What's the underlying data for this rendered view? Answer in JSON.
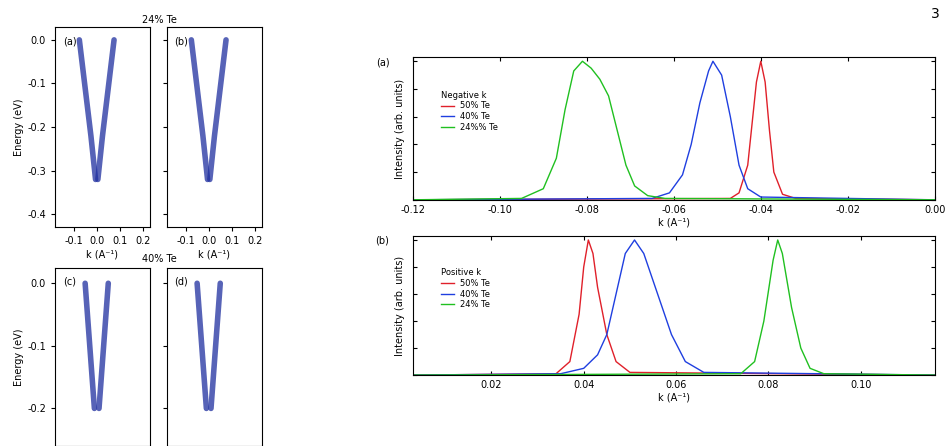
{
  "page": "3",
  "group_titles": [
    "24% Te",
    "40% Te"
  ],
  "chart_data": [
    {
      "type": "line",
      "panel": "(a)",
      "xlabel": "k (A⁻¹)",
      "ylabel": "Energy (eV)",
      "xlim": [
        -0.18,
        0.23
      ],
      "ylim": [
        -0.43,
        0.03
      ],
      "xticks": [
        -0.1,
        0.0,
        0.1,
        0.2
      ],
      "yticks": [
        -0.4,
        -0.3,
        -0.2,
        -0.1,
        0.0
      ],
      "tick_labels": true,
      "series": [
        {
          "color": "#1f2f9f",
          "x": [
            -0.075,
            -0.05,
            -0.025,
            -0.005
          ],
          "values": [
            0.0,
            -0.11,
            -0.22,
            -0.32
          ]
        },
        {
          "color": "#1f2f9f",
          "x": [
            0.075,
            0.05,
            0.025,
            0.005
          ],
          "values": [
            0.0,
            -0.11,
            -0.22,
            -0.32
          ]
        }
      ]
    },
    {
      "type": "line",
      "panel": "(b)",
      "xlabel": "k (A⁻¹)",
      "xlim": [
        -0.18,
        0.23
      ],
      "ylim": [
        -0.43,
        0.03
      ],
      "xticks": [
        -0.1,
        0.0,
        0.1,
        0.2
      ],
      "yticks": [
        -0.4,
        -0.3,
        -0.2,
        -0.1,
        0.0
      ],
      "tick_labels": "x",
      "series": [
        {
          "color": "#1f2f9f",
          "x": [
            -0.075,
            -0.05,
            -0.025,
            -0.005
          ],
          "values": [
            0.0,
            -0.11,
            -0.22,
            -0.32
          ]
        },
        {
          "color": "#1f2f9f",
          "x": [
            0.075,
            0.05,
            0.025,
            0.005
          ],
          "values": [
            0.0,
            -0.11,
            -0.22,
            -0.32
          ]
        }
      ]
    },
    {
      "type": "line",
      "panel": "(c)",
      "ylabel": "Energy (eV)",
      "xlim": [
        -0.18,
        0.23
      ],
      "ylim": [
        -0.26,
        0.025
      ],
      "xticks": [
        -0.1,
        0.0,
        0.1,
        0.2
      ],
      "yticks": [
        -0.2,
        -0.1,
        0.0
      ],
      "tick_labels": "y",
      "series": [
        {
          "color": "#1f2f9f",
          "x": [
            -0.05,
            -0.03,
            -0.01
          ],
          "values": [
            0.0,
            -0.1,
            -0.2
          ]
        },
        {
          "color": "#1f2f9f",
          "x": [
            0.05,
            0.03,
            0.01
          ],
          "values": [
            0.0,
            -0.1,
            -0.2
          ]
        }
      ]
    },
    {
      "type": "line",
      "panel": "(d)",
      "xlim": [
        -0.18,
        0.23
      ],
      "ylim": [
        -0.26,
        0.025
      ],
      "xticks": [
        -0.1,
        0.0,
        0.1,
        0.2
      ],
      "yticks": [
        -0.2,
        -0.1,
        0.0
      ],
      "tick_labels": false,
      "series": [
        {
          "color": "#1f2f9f",
          "x": [
            -0.05,
            -0.03,
            -0.01
          ],
          "values": [
            0.0,
            -0.1,
            -0.2
          ]
        },
        {
          "color": "#1f2f9f",
          "x": [
            0.05,
            0.03,
            0.01
          ],
          "values": [
            0.0,
            -0.1,
            -0.2
          ]
        }
      ]
    },
    {
      "type": "line",
      "panel": "(a)",
      "xlabel": "k (A⁻¹)",
      "ylabel": "Intensity (arb. units)",
      "xlim": [
        -0.12,
        0.0
      ],
      "ylim": [
        0,
        1.03
      ],
      "xticks": [
        {
          "value": -0.12,
          "label": "-0.12"
        },
        {
          "value": -0.1,
          "label": "-0.10"
        },
        {
          "value": -0.08,
          "label": "-0.08"
        },
        {
          "value": -0.06,
          "label": "-0.06"
        },
        {
          "value": -0.04,
          "label": "-0.04"
        },
        {
          "value": -0.02,
          "label": "-0.02"
        },
        {
          "value": 0.0,
          "label": "0.00"
        }
      ],
      "yticks": [
        0,
        0.2,
        0.4,
        0.6,
        0.8,
        1.0
      ],
      "tick_labels": "x",
      "legend": "center left",
      "legend_title": "Negative k",
      "series": [
        {
          "name": "50% Te",
          "color": "#e0202a",
          "x": [
            -0.12,
            -0.047,
            -0.045,
            -0.043,
            -0.042,
            -0.041,
            -0.04,
            -0.039,
            -0.038,
            -0.037,
            -0.035,
            -0.032,
            0.0
          ],
          "values": [
            0.0,
            0.01,
            0.05,
            0.25,
            0.55,
            0.85,
            1.0,
            0.85,
            0.5,
            0.2,
            0.04,
            0.01,
            0.0
          ]
        },
        {
          "name": "40% Te",
          "color": "#1f3fe0",
          "x": [
            -0.12,
            -0.065,
            -0.061,
            -0.058,
            -0.056,
            -0.054,
            -0.052,
            -0.051,
            -0.049,
            -0.047,
            -0.045,
            -0.043,
            -0.04,
            0.0
          ],
          "values": [
            0.0,
            0.01,
            0.05,
            0.18,
            0.4,
            0.7,
            0.93,
            1.0,
            0.9,
            0.6,
            0.25,
            0.08,
            0.02,
            0.0
          ]
        },
        {
          "name": "24%% Te",
          "color": "#20c020",
          "x": [
            -0.12,
            -0.095,
            -0.09,
            -0.087,
            -0.085,
            -0.083,
            -0.081,
            -0.079,
            -0.077,
            -0.075,
            -0.073,
            -0.071,
            -0.069,
            -0.066,
            -0.062,
            0.0
          ],
          "values": [
            0.0,
            0.01,
            0.08,
            0.3,
            0.65,
            0.93,
            1.0,
            0.95,
            0.87,
            0.75,
            0.5,
            0.25,
            0.1,
            0.03,
            0.01,
            0.0
          ]
        }
      ]
    },
    {
      "type": "line",
      "panel": "(b)",
      "xlabel": "k (A⁻¹)",
      "ylabel": "Intensity (arb. units)",
      "xlim": [
        0.003,
        0.116
      ],
      "ylim": [
        0,
        1.03
      ],
      "xticks": [
        {
          "value": 0.02,
          "label": "0.02"
        },
        {
          "value": 0.04,
          "label": "0.04"
        },
        {
          "value": 0.06,
          "label": "0.06"
        },
        {
          "value": 0.08,
          "label": "0.08"
        },
        {
          "value": 0.1,
          "label": "0.10"
        }
      ],
      "yticks": [
        0,
        0.2,
        0.4,
        0.6,
        0.8,
        1.0
      ],
      "tick_labels": "x",
      "legend": "center left",
      "legend_title": "Positive k",
      "series": [
        {
          "name": "50% Te",
          "color": "#e0202a",
          "x": [
            0.003,
            0.034,
            0.037,
            0.039,
            0.04,
            0.041,
            0.042,
            0.043,
            0.045,
            0.047,
            0.05,
            0.116
          ],
          "values": [
            0.0,
            0.01,
            0.1,
            0.45,
            0.8,
            1.0,
            0.9,
            0.65,
            0.3,
            0.1,
            0.02,
            0.0
          ]
        },
        {
          "name": "40% Te",
          "color": "#1f3fe0",
          "x": [
            0.003,
            0.035,
            0.04,
            0.043,
            0.045,
            0.047,
            0.049,
            0.051,
            0.053,
            0.056,
            0.059,
            0.062,
            0.066,
            0.116
          ],
          "values": [
            0.0,
            0.01,
            0.05,
            0.15,
            0.3,
            0.6,
            0.9,
            1.0,
            0.9,
            0.6,
            0.3,
            0.1,
            0.02,
            0.0
          ]
        },
        {
          "name": "24% Te",
          "color": "#20c020",
          "x": [
            0.003,
            0.074,
            0.077,
            0.079,
            0.081,
            0.082,
            0.083,
            0.085,
            0.087,
            0.089,
            0.092,
            0.116
          ],
          "values": [
            0.0,
            0.01,
            0.1,
            0.4,
            0.85,
            1.0,
            0.9,
            0.5,
            0.2,
            0.05,
            0.01,
            0.0
          ]
        }
      ]
    }
  ]
}
